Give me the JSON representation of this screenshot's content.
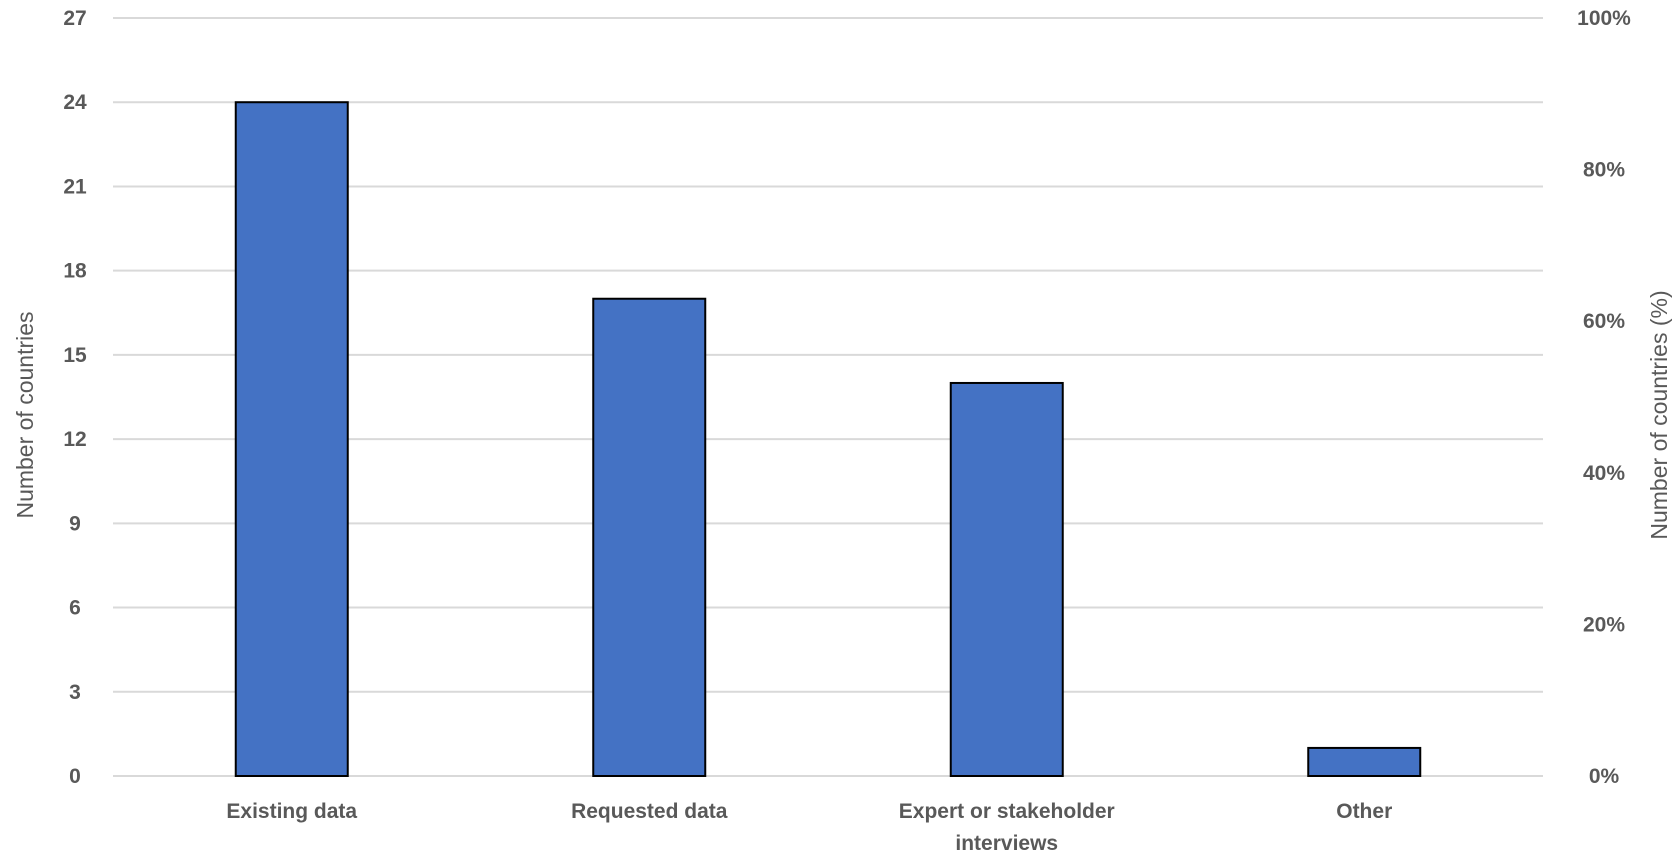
{
  "chart_data": {
    "type": "bar",
    "categories": [
      "Existing data",
      "Requested data",
      "Expert or stakeholder interviews",
      "Other"
    ],
    "category_label_lines": [
      [
        "Existing data"
      ],
      [
        "Requested data"
      ],
      [
        "Expert or stakeholder",
        "interviews"
      ],
      [
        "Other"
      ]
    ],
    "values": [
      24,
      17,
      14,
      1
    ],
    "ylabel": "Number of countries",
    "y2label": "Number of countries (%)",
    "ylim": [
      0,
      27
    ],
    "yticks": [
      "0",
      "3",
      "6",
      "9",
      "12",
      "15",
      "18",
      "21",
      "24",
      "27"
    ],
    "y2lim": [
      0,
      100
    ],
    "y2ticks": [
      "0%",
      "20%",
      "40%",
      "60%",
      "80%",
      "100%"
    ],
    "grid": true,
    "legend": "none",
    "bar_color": "#4472c4"
  }
}
